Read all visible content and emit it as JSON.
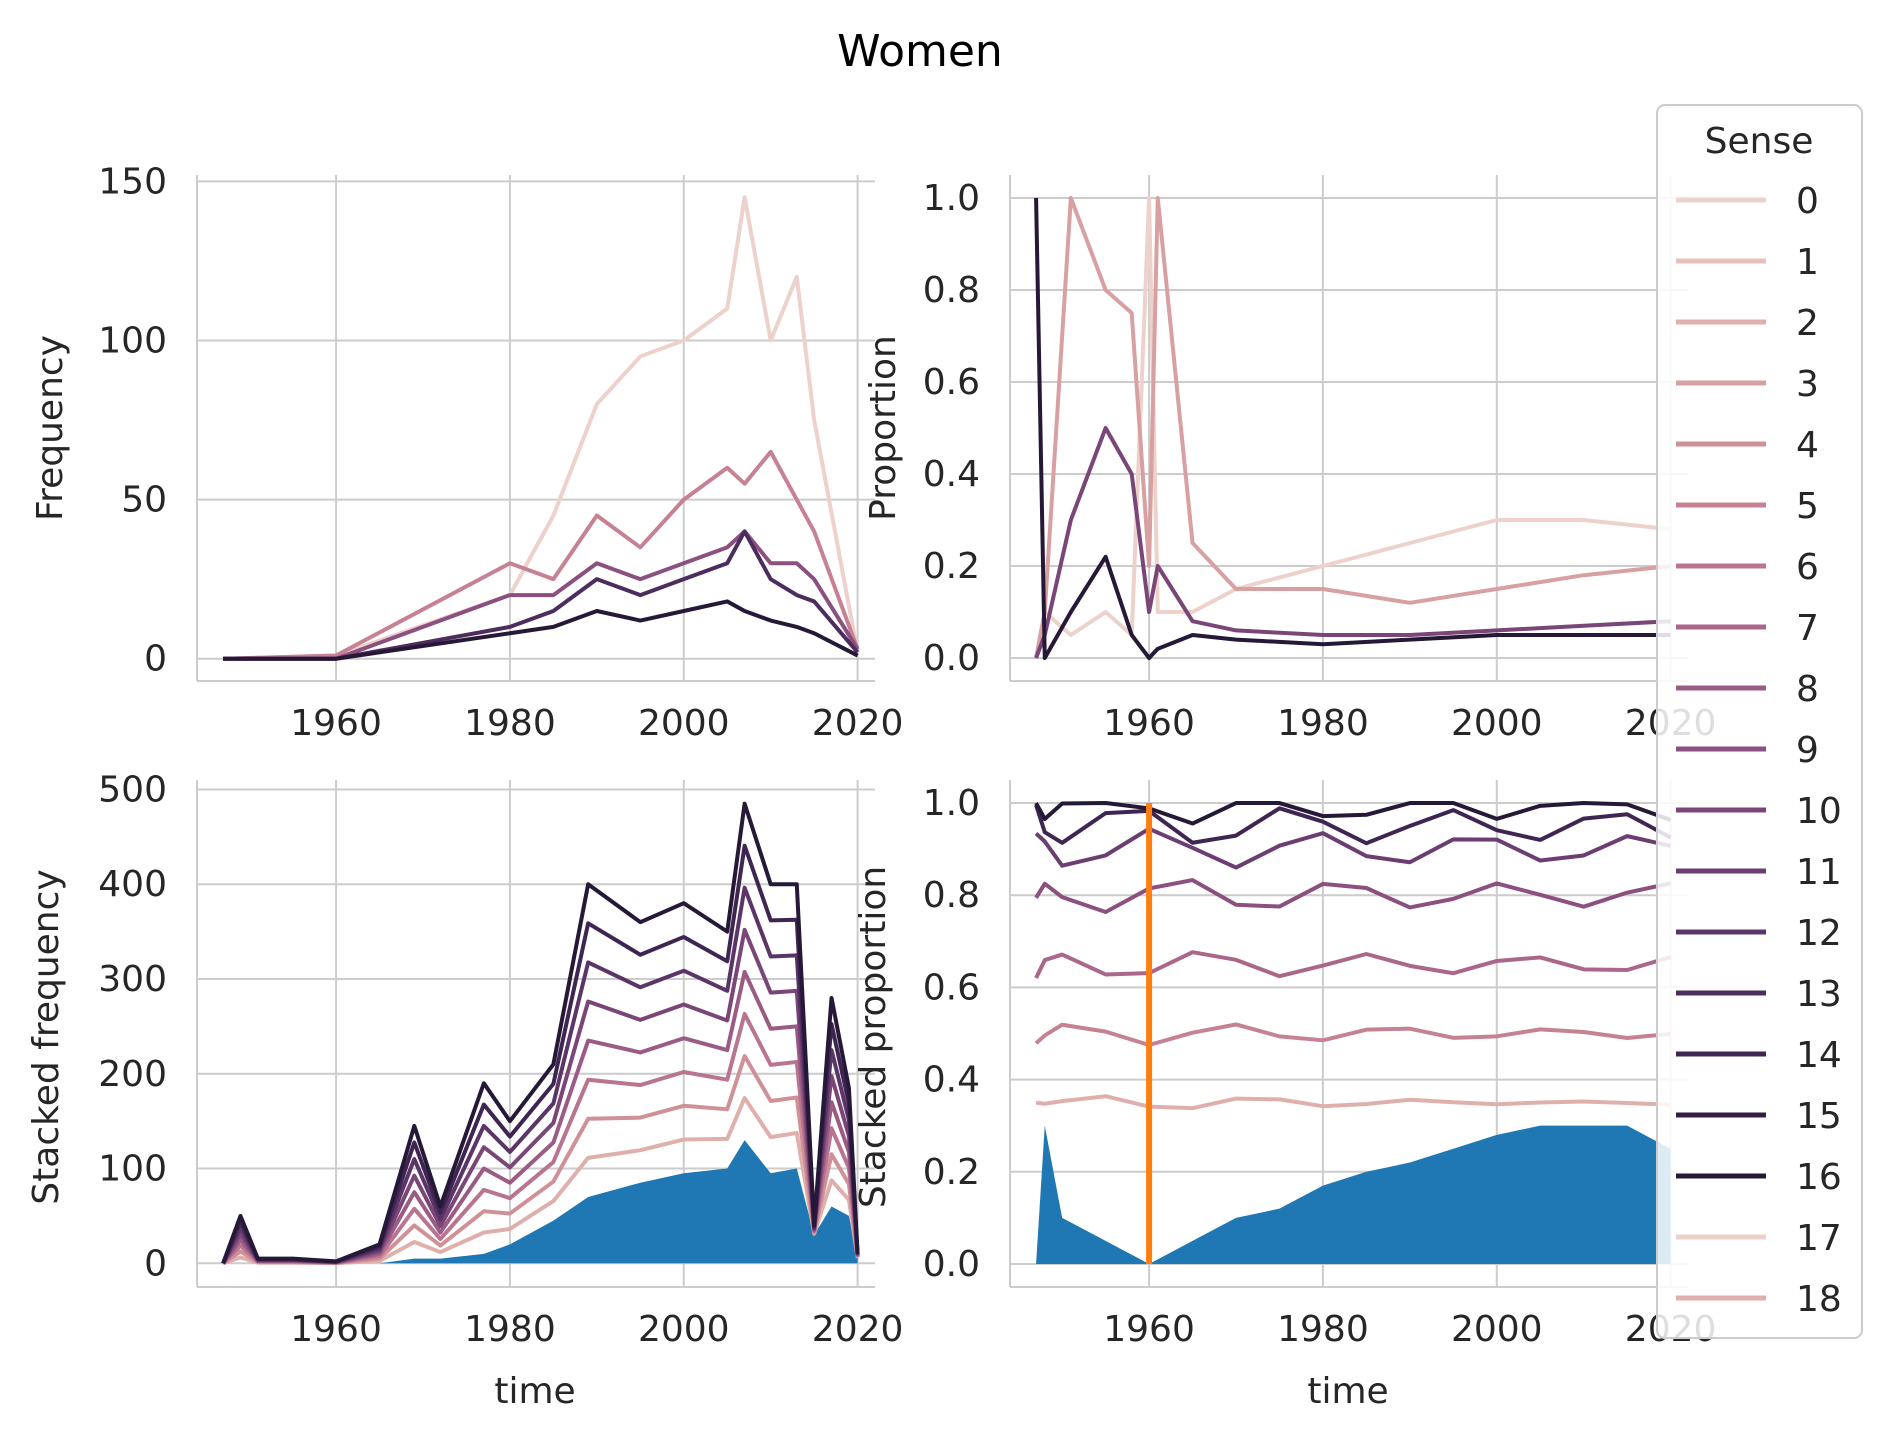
{
  "figure": {
    "title": "Women"
  },
  "legend": {
    "title": "Sense",
    "entries": [
      "0",
      "1",
      "2",
      "3",
      "4",
      "5",
      "6",
      "7",
      "8",
      "9",
      "10",
      "11",
      "12",
      "13",
      "14",
      "15",
      "16",
      "17",
      "18"
    ],
    "colors": [
      "#edd1cb",
      "#e6c0ba",
      "#dfb0ab",
      "#d8a0a0",
      "#d09098",
      "#c68293",
      "#b9748f",
      "#ab678a",
      "#9b5b85",
      "#8b507f",
      "#7a4678",
      "#6b3d71",
      "#5c3568",
      "#4d2c5e",
      "#3f2552",
      "#321e45",
      "#261837",
      "#edd1cb",
      "#dfb0ab"
    ],
    "base_fill": "#1f77b4",
    "orange": "#ff7f0e"
  },
  "chart_data": [
    {
      "id": "top-left",
      "type": "line",
      "xlabel": "",
      "ylabel": "Frequency",
      "xlim": [
        1944,
        2022
      ],
      "ylim": [
        -7,
        152
      ],
      "xticks": [
        1960,
        1980,
        2000,
        2020
      ],
      "yticks": [
        0,
        50,
        100,
        150
      ],
      "ytick_labels": [
        "0",
        "50",
        "100",
        "150"
      ],
      "grid": true,
      "x": [
        1947,
        1960,
        1980,
        1985,
        1990,
        1995,
        2000,
        2005,
        2007,
        2010,
        2013,
        2015,
        2020
      ],
      "series": [
        {
          "name": "0",
          "values": [
            0,
            1,
            20,
            45,
            80,
            95,
            100,
            110,
            145,
            100,
            120,
            75,
            2
          ]
        },
        {
          "name": "5",
          "values": [
            0,
            1,
            30,
            25,
            45,
            35,
            50,
            60,
            55,
            65,
            50,
            40,
            3
          ]
        },
        {
          "name": "9",
          "values": [
            0,
            0,
            20,
            20,
            30,
            25,
            30,
            35,
            40,
            30,
            30,
            25,
            3
          ]
        },
        {
          "name": "13",
          "values": [
            0,
            0,
            10,
            15,
            25,
            20,
            25,
            30,
            40,
            25,
            20,
            18,
            2
          ]
        },
        {
          "name": "16",
          "values": [
            0,
            0,
            8,
            10,
            15,
            12,
            15,
            18,
            15,
            12,
            10,
            8,
            1
          ]
        }
      ]
    },
    {
      "id": "top-right",
      "type": "line",
      "xlabel": "",
      "ylabel": "Proportion",
      "xlim": [
        1944,
        2022
      ],
      "ylim": [
        -0.05,
        1.05
      ],
      "xticks": [
        1960,
        1980,
        2000,
        2020
      ],
      "yticks": [
        0,
        0.2,
        0.4,
        0.6,
        0.8,
        1.0
      ],
      "ytick_labels": [
        "0.0",
        "0.2",
        "0.4",
        "0.6",
        "0.8",
        "1.0"
      ],
      "grid": true,
      "x": [
        1947,
        1948,
        1951,
        1955,
        1958,
        1960,
        1961,
        1965,
        1970,
        1980,
        1990,
        2000,
        2010,
        2020
      ],
      "series": [
        {
          "name": "0",
          "values": [
            0,
            0.1,
            0.05,
            0.1,
            0.05,
            1.0,
            0.1,
            0.1,
            0.15,
            0.2,
            0.25,
            0.3,
            0.3,
            0.28
          ]
        },
        {
          "name": "3",
          "values": [
            0,
            0.1,
            1.0,
            0.8,
            0.75,
            0.2,
            1.0,
            0.25,
            0.15,
            0.15,
            0.12,
            0.15,
            0.18,
            0.2
          ]
        },
        {
          "name": "10",
          "values": [
            0,
            0.05,
            0.3,
            0.5,
            0.4,
            0.1,
            0.2,
            0.08,
            0.06,
            0.05,
            0.05,
            0.06,
            0.07,
            0.08
          ]
        },
        {
          "name": "16",
          "values": [
            1.0,
            0,
            0.1,
            0.22,
            0.05,
            0,
            0.02,
            0.05,
            0.04,
            0.03,
            0.04,
            0.05,
            0.05,
            0.05
          ]
        }
      ]
    },
    {
      "id": "bottom-left",
      "type": "area",
      "xlabel": "time",
      "ylabel": "Stacked frequency",
      "xlim": [
        1944,
        2022
      ],
      "ylim": [
        -25,
        510
      ],
      "xticks": [
        1960,
        1980,
        2000,
        2020
      ],
      "yticks": [
        0,
        100,
        200,
        300,
        400,
        500
      ],
      "ytick_labels": [
        "0",
        "100",
        "200",
        "300",
        "400",
        "500"
      ],
      "grid": true,
      "x": [
        1947,
        1949,
        1951,
        1955,
        1960,
        1965,
        1969,
        1972,
        1977,
        1980,
        1985,
        1989,
        1995,
        2000,
        2005,
        2007,
        2010,
        2013,
        2015,
        2017,
        2019,
        2020
      ],
      "base_values": [
        0,
        0,
        0,
        0,
        0,
        0,
        5,
        5,
        10,
        20,
        45,
        70,
        85,
        95,
        100,
        130,
        95,
        100,
        30,
        60,
        50,
        5
      ],
      "top_values": [
        0,
        50,
        5,
        5,
        2,
        20,
        145,
        60,
        190,
        150,
        210,
        400,
        360,
        380,
        350,
        485,
        400,
        400,
        40,
        280,
        185,
        10
      ]
    },
    {
      "id": "bottom-right",
      "type": "area",
      "xlabel": "time",
      "ylabel": "Stacked proportion",
      "xlim": [
        1944,
        2022
      ],
      "ylim": [
        -0.05,
        1.05
      ],
      "xticks": [
        1960,
        1980,
        2000,
        2020
      ],
      "yticks": [
        0,
        0.2,
        0.4,
        0.6,
        0.8,
        1.0
      ],
      "ytick_labels": [
        "0.0",
        "0.2",
        "0.4",
        "0.6",
        "0.8",
        "1.0"
      ],
      "grid": true,
      "x": [
        1947,
        1948,
        1950,
        1955,
        1960,
        1965,
        1970,
        1975,
        1980,
        1985,
        1990,
        1995,
        2000,
        2005,
        2010,
        2015,
        2020
      ],
      "base_values": [
        0,
        0.3,
        0.1,
        0.05,
        0,
        0.05,
        0.1,
        0.12,
        0.17,
        0.2,
        0.22,
        0.25,
        0.28,
        0.3,
        0.3,
        0.3,
        0.25
      ],
      "stack_levels": [
        0.35,
        0.5,
        0.65,
        0.8,
        0.9,
        0.95,
        1.0
      ]
    }
  ]
}
